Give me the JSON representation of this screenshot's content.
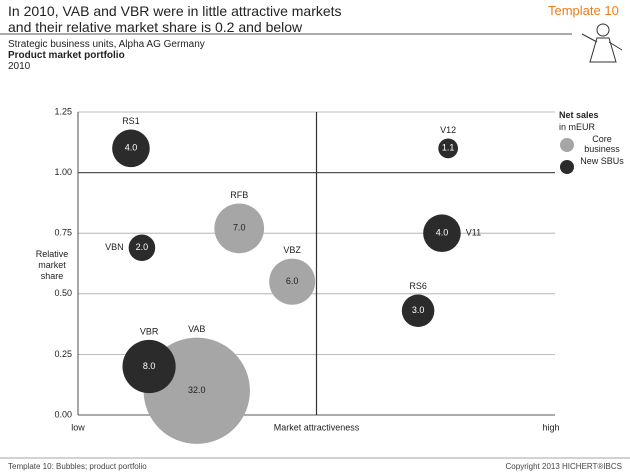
{
  "header": {
    "title": "In 2010, VAB and VBR were in little attractive markets and their relative market share is 0.2 and below",
    "template": "Template 10",
    "subtitle": "Strategic business units, Alpha AG Germany",
    "measure": "Product market portfolio",
    "period": "2010"
  },
  "chart_data": {
    "type": "bubble",
    "ylabel": "Relative market share",
    "xlabel": "Market attractiveness",
    "xlabel_low": "low",
    "xlabel_high": "high",
    "legend_title": "Net sales",
    "legend_subtitle": "in mEUR",
    "xlim": [
      0,
      1
    ],
    "ylim": [
      0,
      1.25
    ],
    "yticks": [
      {
        "value": 0,
        "label": "0.00"
      },
      {
        "value": 0.25,
        "label": "0.25"
      },
      {
        "value": 0.5,
        "label": "0.50"
      },
      {
        "value": 0.75,
        "label": "0.75"
      },
      {
        "value": 1,
        "label": "1.00"
      },
      {
        "value": 1.25,
        "label": "1.25"
      }
    ],
    "quadrant_lines": {
      "x": 0.5,
      "y": 1
    },
    "series": [
      {
        "name": "Core business",
        "color": "#a6a6a6",
        "names": [
          "RFB",
          "VBZ",
          "VAB"
        ],
        "x": [
          0.338,
          0.449,
          0.249
        ],
        "values": [
          0.77,
          0.55,
          0.1
        ],
        "sizes": [
          7,
          6,
          32
        ],
        "value_labels": [
          "7.0",
          "6.0",
          "32.0"
        ]
      },
      {
        "name": "New SBUs",
        "color": "#2b2b2b",
        "names": [
          "RS1",
          "V12",
          "VBN",
          "V11",
          "RS6",
          "VBR"
        ],
        "x": [
          0.111,
          0.776,
          0.134,
          0.763,
          0.713,
          0.149
        ],
        "values": [
          1.1,
          1.1,
          0.69,
          0.75,
          0.43,
          0.2
        ],
        "sizes": [
          4,
          1.1,
          2,
          4,
          3,
          8
        ],
        "value_labels": [
          "4.0",
          "1.1",
          "2.0",
          "4.0",
          "3.0",
          "8.0"
        ]
      }
    ]
  },
  "footer": {
    "left": "Template 10: Bubbles; product portfolio",
    "right": "Copyright 2013 HICHERT®IBCS"
  }
}
